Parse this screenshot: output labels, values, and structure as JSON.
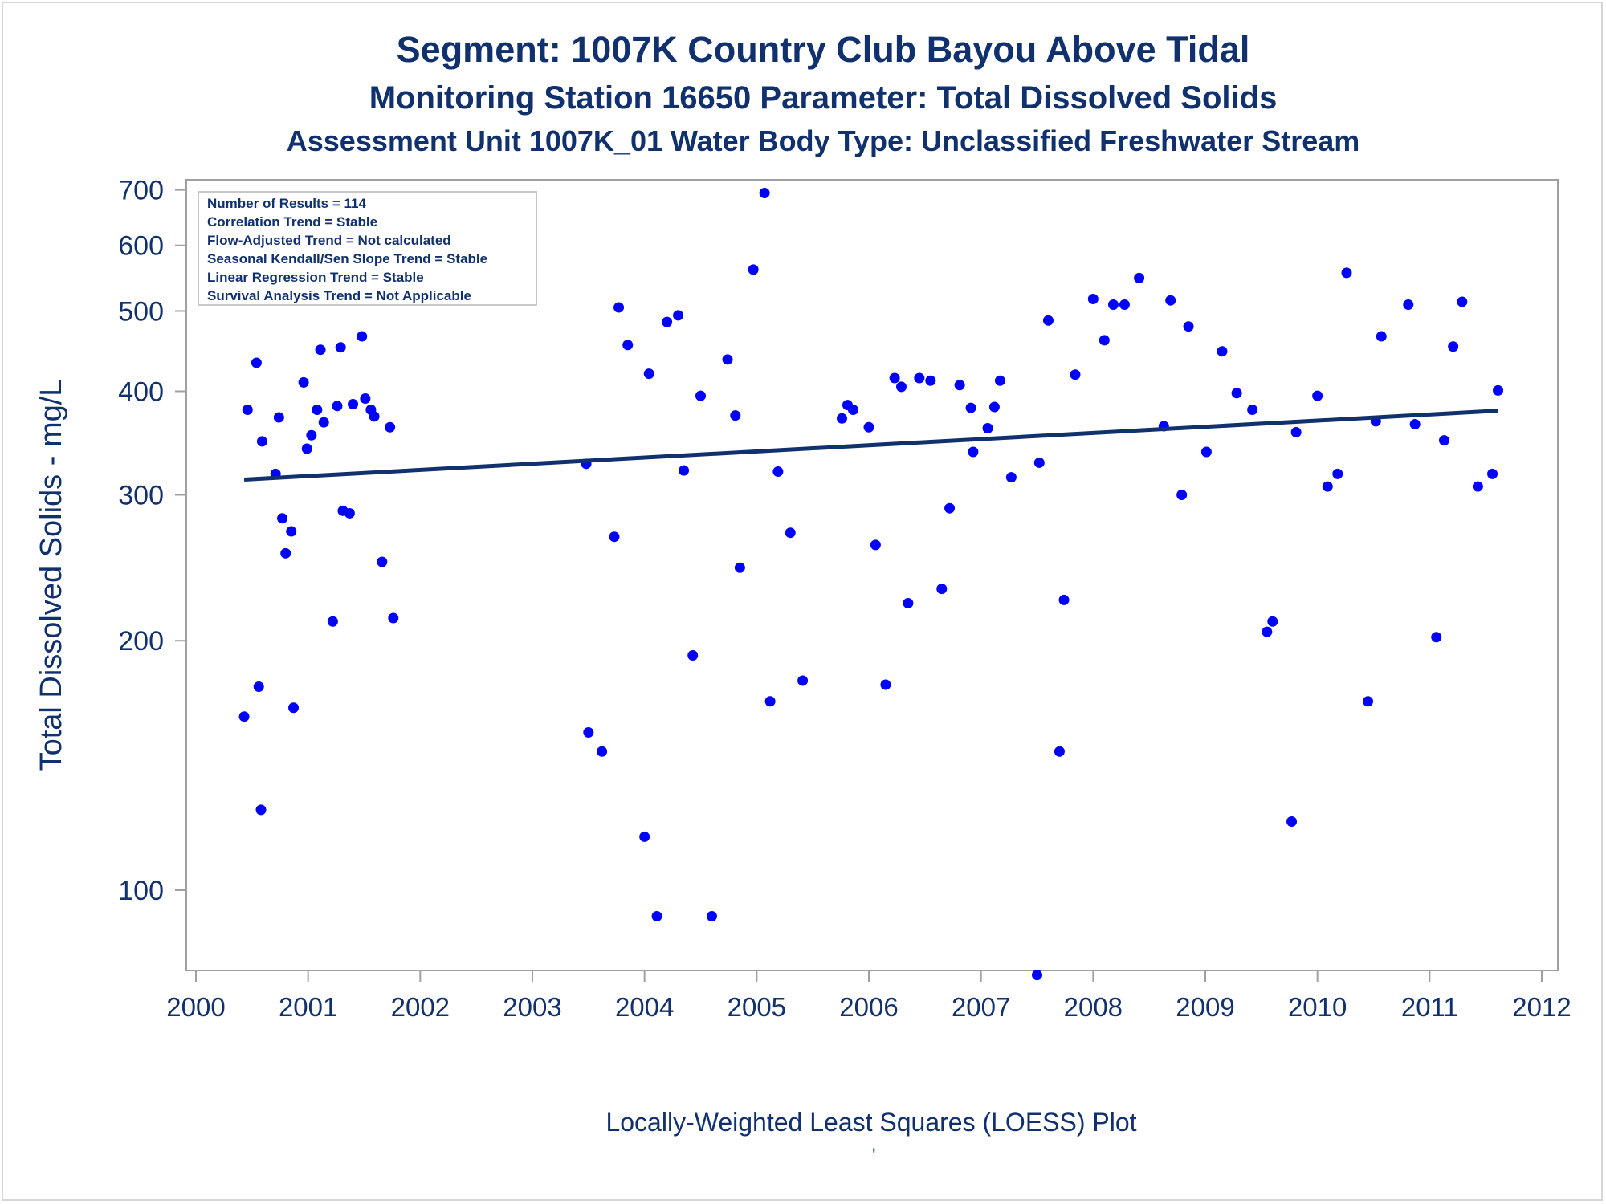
{
  "title": "Segment: 1007K  Country Club Bayou Above Tidal",
  "subtitle": "Monitoring Station 16650 Parameter: Total Dissolved Solids",
  "subtitle2": "Assessment Unit 1007K_01   Water Body Type: Unclassified Freshwater Stream",
  "footnote": "Locally-Weighted Least Squares (LOESS) Plot",
  "footmark": "'",
  "colors": {
    "text": "#10306e",
    "points": "#0000ff",
    "trend_line": "#10306e",
    "frame": "#a0a0a0"
  },
  "stats_box": {
    "lines": [
      "Number of Results = 114",
      "Correlation Trend = Stable",
      "Flow-Adjusted Trend = Not calculated",
      "Seasonal Kendall/Sen Slope Trend = Stable",
      "Linear Regression Trend = Stable",
      "Survival Analysis Trend = Not Applicable"
    ],
    "placement": "top-left"
  },
  "chart_data": {
    "type": "scatter",
    "ylabel": "Total Dissolved Solids - mg/L",
    "xlabel": "",
    "y_scale": "log",
    "xlim": [
      2000,
      2012
    ],
    "ylim": [
      80,
      720
    ],
    "x_ticks": [
      2000,
      2001,
      2002,
      2003,
      2004,
      2005,
      2006,
      2007,
      2008,
      2009,
      2010,
      2011,
      2012
    ],
    "y_ticks": [
      100,
      200,
      300,
      400,
      500,
      600,
      700
    ],
    "grid": false,
    "series": [
      {
        "points": [
          [
            2000.43,
            162
          ],
          [
            2000.46,
            380
          ],
          [
            2000.54,
            433
          ],
          [
            2000.56,
            176
          ],
          [
            2000.58,
            125
          ],
          [
            2000.59,
            348
          ],
          [
            2000.71,
            318
          ],
          [
            2000.74,
            372
          ],
          [
            2000.77,
            281
          ],
          [
            2000.8,
            255
          ],
          [
            2000.85,
            271
          ],
          [
            2000.87,
            166
          ],
          [
            2000.96,
            410
          ],
          [
            2000.99,
            341
          ],
          [
            2001.03,
            354
          ],
          [
            2001.08,
            380
          ],
          [
            2001.11,
            449
          ],
          [
            2001.14,
            367
          ],
          [
            2001.22,
            211
          ],
          [
            2001.26,
            384
          ],
          [
            2001.29,
            452
          ],
          [
            2001.31,
            287
          ],
          [
            2001.37,
            285
          ],
          [
            2001.4,
            386
          ],
          [
            2001.48,
            466
          ],
          [
            2001.51,
            392
          ],
          [
            2001.56,
            380
          ],
          [
            2001.59,
            373
          ],
          [
            2001.66,
            249
          ],
          [
            2001.73,
            362
          ],
          [
            2001.76,
            213
          ],
          [
            2003.48,
            327
          ],
          [
            2003.5,
            155
          ],
          [
            2003.62,
            147
          ],
          [
            2003.73,
            267
          ],
          [
            2003.77,
            505
          ],
          [
            2003.85,
            455
          ],
          [
            2004.0,
            116
          ],
          [
            2004.04,
            420
          ],
          [
            2004.11,
            93
          ],
          [
            2004.2,
            485
          ],
          [
            2004.3,
            494
          ],
          [
            2004.35,
            321
          ],
          [
            2004.43,
            192
          ],
          [
            2004.5,
            395
          ],
          [
            2004.6,
            93
          ],
          [
            2004.74,
            437
          ],
          [
            2004.81,
            374
          ],
          [
            2004.85,
            245
          ],
          [
            2004.97,
            561
          ],
          [
            2005.07,
            694
          ],
          [
            2005.12,
            169
          ],
          [
            2005.19,
            320
          ],
          [
            2005.3,
            270
          ],
          [
            2005.41,
            179
          ],
          [
            2005.76,
            371
          ],
          [
            2005.81,
            385
          ],
          [
            2005.86,
            380
          ],
          [
            2006.0,
            362
          ],
          [
            2006.06,
            261
          ],
          [
            2006.15,
            177
          ],
          [
            2006.23,
            415
          ],
          [
            2006.29,
            405
          ],
          [
            2006.35,
            222
          ],
          [
            2006.45,
            415
          ],
          [
            2006.55,
            412
          ],
          [
            2006.65,
            231
          ],
          [
            2006.72,
            289
          ],
          [
            2006.81,
            407
          ],
          [
            2006.91,
            382
          ],
          [
            2006.93,
            338
          ],
          [
            2007.06,
            361
          ],
          [
            2007.12,
            383
          ],
          [
            2007.17,
            412
          ],
          [
            2007.27,
            315
          ],
          [
            2007.5,
            79
          ],
          [
            2007.52,
            328
          ],
          [
            2007.6,
            487
          ],
          [
            2007.7,
            147
          ],
          [
            2007.74,
            224
          ],
          [
            2007.84,
            419
          ],
          [
            2008.0,
            517
          ],
          [
            2008.1,
            461
          ],
          [
            2008.18,
            509
          ],
          [
            2008.28,
            509
          ],
          [
            2008.41,
            548
          ],
          [
            2008.63,
            363
          ],
          [
            2008.69,
            515
          ],
          [
            2008.79,
            300
          ],
          [
            2008.85,
            479
          ],
          [
            2009.01,
            338
          ],
          [
            2009.15,
            447
          ],
          [
            2009.28,
            398
          ],
          [
            2009.42,
            380
          ],
          [
            2009.55,
            205
          ],
          [
            2009.6,
            211
          ],
          [
            2009.77,
            121
          ],
          [
            2009.81,
            357
          ],
          [
            2010.0,
            395
          ],
          [
            2010.09,
            307
          ],
          [
            2010.18,
            318
          ],
          [
            2010.26,
            556
          ],
          [
            2010.45,
            169
          ],
          [
            2010.52,
            368
          ],
          [
            2010.57,
            466
          ],
          [
            2010.81,
            509
          ],
          [
            2010.87,
            365
          ],
          [
            2011.06,
            202
          ],
          [
            2011.13,
            349
          ],
          [
            2011.21,
            453
          ],
          [
            2011.29,
            513
          ],
          [
            2011.43,
            307
          ],
          [
            2011.56,
            318
          ],
          [
            2011.61,
            401
          ]
        ]
      }
    ],
    "trend_line": {
      "x": [
        2000.43,
        2011.61
      ],
      "y": [
        313,
        379
      ]
    }
  }
}
